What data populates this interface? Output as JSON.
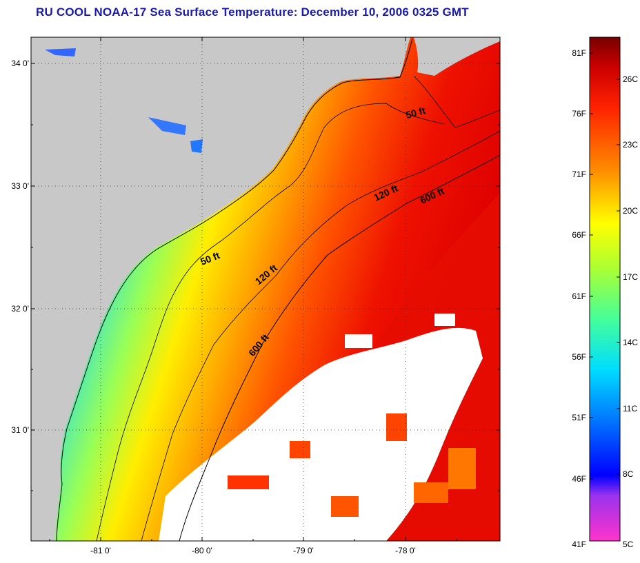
{
  "title": "RU COOL  NOAA-17  Sea Surface Temperature:  December 10, 2006 0325 GMT",
  "map": {
    "lat_labels": [
      "34 0'",
      "33 0'",
      "32 0'",
      "31 0'"
    ],
    "lon_labels": [
      "-81 0'",
      "-80 0'",
      "-79 0'",
      "-78 0'"
    ],
    "contour_labels": {
      "c50_north": "50 ft",
      "c50_south": "50 ft",
      "c120_north": "120 ft",
      "c120_south": "120 ft",
      "c600_north": "600 ft",
      "c600_south": "600 ft"
    }
  },
  "colorbar": {
    "fahrenheit_labels": [
      "81F",
      "76F",
      "71F",
      "66F",
      "61F",
      "56F",
      "51F",
      "46F",
      "41F"
    ],
    "celsius_labels": [
      "26C",
      "23C",
      "20C",
      "17C",
      "14C",
      "11C",
      "8C",
      "5C"
    ]
  },
  "colors": {
    "land": "#c8c8c8",
    "cloud": "#ffffff",
    "title": "#1a1aa8"
  }
}
